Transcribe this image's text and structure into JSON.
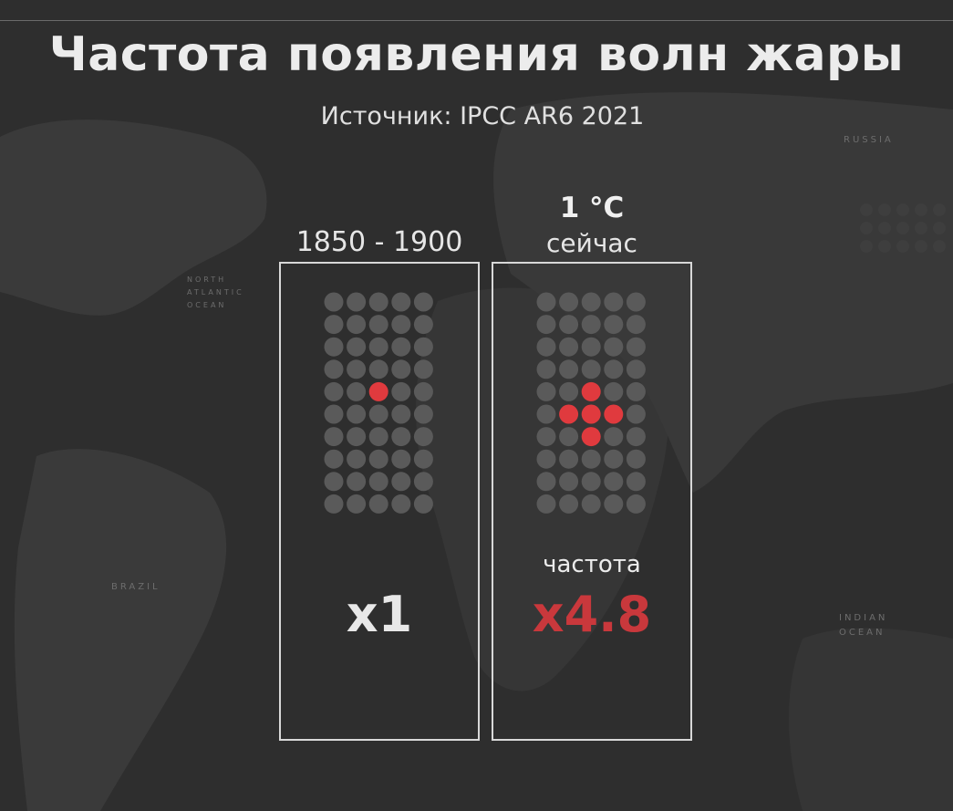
{
  "title": "Частота появления волн жары",
  "subtitle": "Источник: IPCC AR6 2021",
  "map_labels": {
    "russia": "RUSSIA",
    "north_atlantic": "NORTH ATLANTIC OCEAN",
    "brazil": "BRAZIL",
    "indian_ocean": "INDIAN OCEAN"
  },
  "colors": {
    "background": "#2f2f2f",
    "dot_inactive": "#5a5a5a",
    "dot_active": "#e03a3e",
    "highlight_text": "#c9383c",
    "panel_border": "#d8d8d8"
  },
  "panels": [
    {
      "period_label": "1850 - 1900",
      "temperature_label": "",
      "now_label": "",
      "frequency_label": "",
      "multiplier_label": "x1"
    },
    {
      "period_label": "",
      "temperature_label": "1 °C",
      "now_label": "сейчас",
      "frequency_label": "частота",
      "multiplier_label": "x4.8"
    }
  ],
  "chart_data": [
    {
      "type": "waffle",
      "grid": {
        "columns": 5,
        "rows": 10,
        "total": 50
      },
      "highlighted": 1,
      "highlighted_cells": [
        [
          4,
          2
        ]
      ],
      "value": 1,
      "label": "x1"
    },
    {
      "type": "waffle",
      "grid": {
        "columns": 5,
        "rows": 10,
        "total": 50
      },
      "highlighted": 5,
      "highlighted_cells": [
        [
          4,
          2
        ],
        [
          5,
          1
        ],
        [
          5,
          2
        ],
        [
          5,
          3
        ],
        [
          6,
          2
        ]
      ],
      "value": 4.8,
      "label": "x4.8"
    }
  ]
}
